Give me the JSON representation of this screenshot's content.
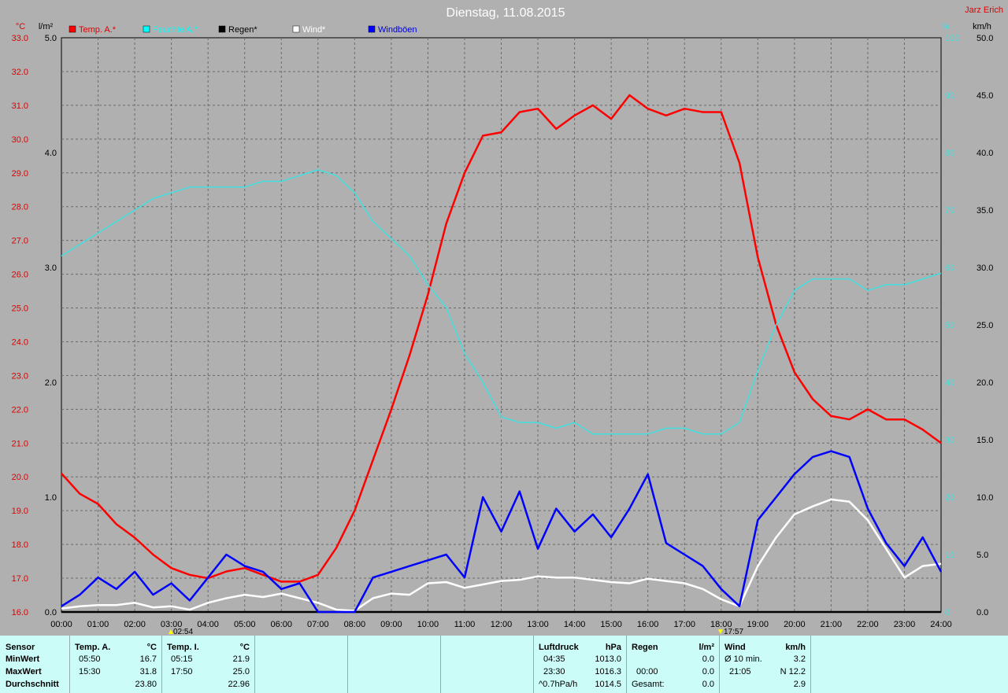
{
  "title": "Dienstag, 11.08.2015",
  "author": "Jarz Erich",
  "axis_units": {
    "temp": "°C",
    "rain": "l/m²",
    "humidity": "%",
    "wind": "km/h"
  },
  "sun_markers": {
    "sunrise": "02:54",
    "sunset": "17:57"
  },
  "legend": [
    {
      "label": "Temp. A.*",
      "color": "#ff0000"
    },
    {
      "label": "Feuchte A.*",
      "color": "#00ffff"
    },
    {
      "label": "Regen*",
      "color": "#000000"
    },
    {
      "label": "Wind*",
      "color": "#ffffff"
    },
    {
      "label": "Windböen",
      "color": "#0000ff"
    }
  ],
  "chart_data": {
    "type": "line",
    "title": "Dienstag, 11.08.2015",
    "x_ticks": [
      "00:00",
      "01:00",
      "02:00",
      "03:00",
      "04:00",
      "05:00",
      "06:00",
      "07:00",
      "08:00",
      "09:00",
      "10:00",
      "11:00",
      "12:00",
      "13:00",
      "14:00",
      "15:00",
      "16:00",
      "17:00",
      "18:00",
      "19:00",
      "20:00",
      "21:00",
      "22:00",
      "23:00",
      "24:00"
    ],
    "axes": {
      "temp": {
        "unit": "°C",
        "range": [
          16,
          33
        ],
        "ticks": [
          "33.0",
          "32.0",
          "31.0",
          "30.0",
          "29.0",
          "28.0",
          "27.0",
          "26.0",
          "25.0",
          "24.0",
          "23.0",
          "22.0",
          "21.0",
          "20.0",
          "19.0",
          "18.0",
          "17.0",
          "16.0"
        ]
      },
      "rain": {
        "unit": "l/m²",
        "range": [
          0,
          5
        ],
        "ticks": [
          "5.0",
          "4.0",
          "3.0",
          "2.0",
          "1.0",
          "0.0"
        ]
      },
      "humidity": {
        "unit": "%",
        "range": [
          0,
          100
        ],
        "ticks": [
          "100",
          "90",
          "80",
          "70",
          "60",
          "50",
          "40",
          "30",
          "20",
          "10",
          "0"
        ]
      },
      "wind": {
        "unit": "km/h",
        "range": [
          0,
          50
        ],
        "ticks": [
          "50.0",
          "45.0",
          "40.0",
          "35.0",
          "30.0",
          "25.0",
          "20.0",
          "15.0",
          "10.0",
          "5.0",
          "0.0"
        ]
      }
    },
    "grid": true,
    "series": [
      {
        "name": "Temp. A.*",
        "axis": "temp",
        "color": "#ff0000",
        "x": [
          0,
          0.5,
          1,
          1.5,
          2,
          2.5,
          3,
          3.5,
          4,
          4.5,
          5,
          5.5,
          6,
          6.5,
          7,
          7.5,
          8,
          8.5,
          9,
          9.5,
          10,
          10.5,
          11,
          11.5,
          12,
          12.5,
          13,
          13.5,
          14,
          14.5,
          15,
          15.5,
          16,
          16.5,
          17,
          17.5,
          18,
          18.5,
          19,
          19.5,
          20,
          20.5,
          21,
          21.5,
          22,
          22.5,
          23,
          23.5,
          24
        ],
        "y": [
          20.1,
          19.5,
          19.2,
          18.6,
          18.2,
          17.7,
          17.3,
          17.1,
          17.0,
          17.2,
          17.3,
          17.1,
          16.9,
          16.9,
          17.1,
          17.9,
          19.0,
          20.5,
          22.0,
          23.6,
          25.4,
          27.5,
          29.0,
          30.1,
          30.2,
          30.8,
          30.9,
          30.3,
          30.7,
          31.0,
          30.6,
          31.3,
          30.9,
          30.7,
          30.9,
          30.8,
          30.8,
          29.3,
          26.5,
          24.5,
          23.1,
          22.3,
          21.8,
          21.7,
          22.0,
          21.7,
          21.7,
          21.4,
          21.0
        ]
      },
      {
        "name": "Feuchte A.*",
        "axis": "humidity",
        "color": "#40e0e0",
        "x": [
          0,
          0.5,
          1,
          1.5,
          2,
          2.5,
          3,
          3.5,
          4,
          4.5,
          5,
          5.5,
          6,
          6.5,
          7,
          7.5,
          8,
          8.5,
          9,
          9.5,
          10,
          10.5,
          11,
          11.5,
          12,
          12.5,
          13,
          13.5,
          14,
          14.5,
          15,
          15.5,
          16,
          16.5,
          17,
          17.5,
          18,
          18.5,
          19,
          19.5,
          20,
          20.5,
          21,
          21.5,
          22,
          22.5,
          23,
          23.5,
          24
        ],
        "y": [
          62,
          64,
          66,
          68,
          70,
          72,
          73,
          74,
          74,
          74,
          74,
          75,
          75,
          76,
          77,
          76,
          73,
          68,
          65,
          62,
          57,
          53,
          45,
          40,
          34,
          33,
          33,
          32,
          33,
          31,
          31,
          31,
          31,
          32,
          32,
          31,
          31,
          33,
          42,
          50,
          56,
          58,
          58,
          58,
          56,
          57,
          57,
          58,
          59
        ]
      },
      {
        "name": "Regen*",
        "axis": "rain",
        "color": "#000000",
        "x": [
          0,
          24
        ],
        "y": [
          0,
          0
        ]
      },
      {
        "name": "Wind*",
        "axis": "wind",
        "color": "#ffffff",
        "x": [
          0,
          0.5,
          1,
          1.5,
          2,
          2.5,
          3,
          3.5,
          4,
          4.5,
          5,
          5.5,
          6,
          6.5,
          7,
          7.5,
          8,
          8.5,
          9,
          9.5,
          10,
          10.5,
          11,
          11.5,
          12,
          12.5,
          13,
          13.5,
          14,
          14.5,
          15,
          15.5,
          16,
          16.5,
          17,
          17.5,
          18,
          18.5,
          19,
          19.5,
          20,
          20.5,
          21,
          21.5,
          22,
          22.5,
          23,
          23.5,
          24
        ],
        "y": [
          0.3,
          0.5,
          0.6,
          0.6,
          0.8,
          0.4,
          0.5,
          0.2,
          0.8,
          1.2,
          1.5,
          1.3,
          1.6,
          1.2,
          0.8,
          0.2,
          0.1,
          1.2,
          1.6,
          1.5,
          2.5,
          2.6,
          2.1,
          2.4,
          2.7,
          2.8,
          3.1,
          3.0,
          3.0,
          2.8,
          2.6,
          2.5,
          2.9,
          2.7,
          2.5,
          2.0,
          1.1,
          0.5,
          4.0,
          6.5,
          8.5,
          9.2,
          9.8,
          9.6,
          8.0,
          5.5,
          3.0,
          4.0,
          4.2
        ]
      },
      {
        "name": "Windböen",
        "axis": "wind",
        "color": "#0000ff",
        "x": [
          0,
          0.5,
          1,
          1.5,
          2,
          2.5,
          3,
          3.5,
          4,
          4.5,
          5,
          5.5,
          6,
          6.5,
          7,
          7.5,
          8,
          8.5,
          9,
          9.5,
          10,
          10.5,
          11,
          11.5,
          12,
          12.5,
          13,
          13.5,
          14,
          14.5,
          15,
          15.5,
          16,
          16.5,
          17,
          17.5,
          18,
          18.5,
          19,
          19.5,
          20,
          20.5,
          21,
          21.5,
          22,
          22.5,
          23,
          23.5,
          24
        ],
        "y": [
          0.5,
          1.5,
          3.0,
          2.0,
          3.5,
          1.5,
          2.5,
          1.0,
          3.0,
          5.0,
          4.0,
          3.5,
          2.0,
          2.5,
          0,
          0,
          0,
          3.0,
          3.5,
          4.0,
          4.5,
          5.0,
          3.0,
          10.0,
          7.0,
          10.5,
          5.5,
          9.0,
          7.0,
          8.5,
          6.5,
          9.0,
          12.0,
          6.0,
          5.0,
          4.0,
          2.0,
          0.5,
          8.0,
          10.0,
          12.0,
          13.5,
          14.0,
          13.5,
          9.0,
          6.0,
          4.0,
          6.5,
          3.5
        ]
      }
    ]
  },
  "panel": {
    "sensor": {
      "header": "Sensor",
      "rows": [
        "MinWert",
        "MaxWert",
        "Durchschnitt"
      ]
    },
    "temp_a": {
      "header": "Temp. A.",
      "unit": "°C",
      "min_time": "05:50",
      "min_val": "16.7",
      "max_time": "15:30",
      "max_val": "31.8",
      "avg": "23.80"
    },
    "temp_i": {
      "header": "Temp. I.",
      "unit": "°C",
      "min_time": "05:15",
      "min_val": "21.9",
      "max_time": "17:50",
      "max_val": "25.0",
      "avg": "22.96"
    },
    "pressure": {
      "header": "Luftdruck",
      "unit": "hPa",
      "min_time": "04:35",
      "min_val": "1013.0",
      "max_time": "23:30",
      "max_val": "1016.3",
      "trend_label": "^0.7hPa/h",
      "trend_val": "1014.5"
    },
    "rain": {
      "header": "Regen",
      "unit": "l/m²",
      "row1_val": "0.0",
      "row2_time": "00:00",
      "row2_val": "0.0",
      "row3_label": "Gesamt:",
      "row3_val": "0.0"
    },
    "wind": {
      "header": "Wind",
      "unit": "km/h",
      "row1_label": "Ø 10 min.",
      "row1_val": "3.2",
      "row2_time": "21:05",
      "row2_val": "N 12.2",
      "row3_val": "2.9"
    }
  }
}
